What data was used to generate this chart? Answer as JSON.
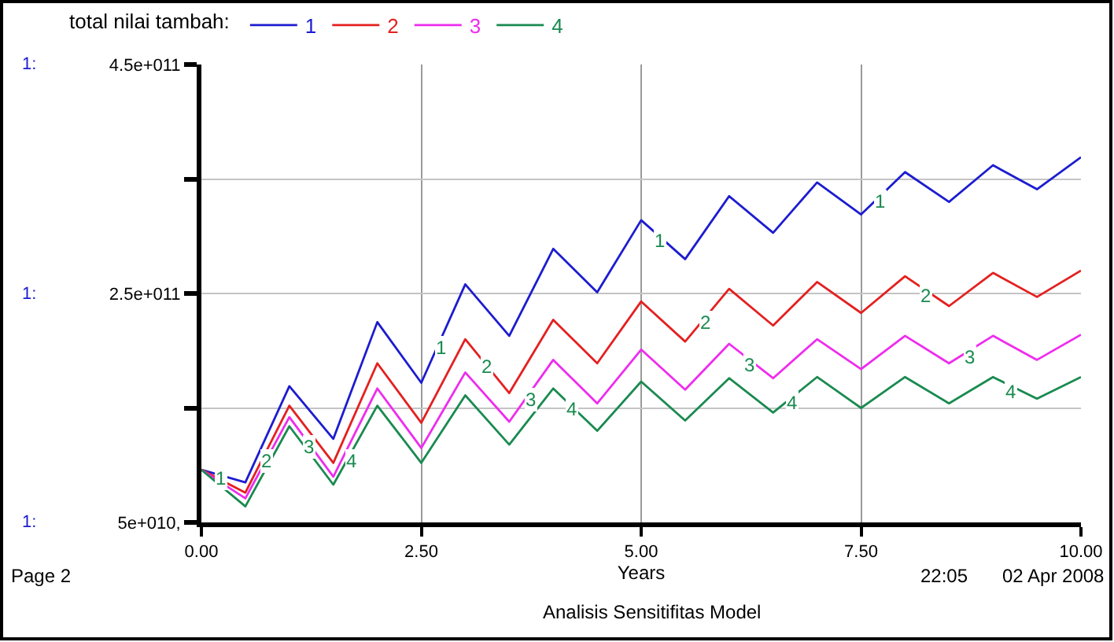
{
  "chart_data": {
    "type": "line",
    "legend_title": "total nilai tambah:",
    "xlabel": "Years",
    "x": [
      0,
      0.5,
      1,
      1.5,
      2,
      2.5,
      3,
      3.5,
      4,
      4.5,
      5,
      5.5,
      6,
      6.5,
      7,
      7.5,
      8,
      8.5,
      9,
      9.5,
      10
    ],
    "series": [
      {
        "name": "1",
        "color": "#1c1cd0",
        "values": [
          96000000000.0,
          85000000000.0,
          169000000000.0,
          123000000000.0,
          225000000000.0,
          172000000000.0,
          258000000000.0,
          213000000000.0,
          289000000000.0,
          251000000000.0,
          314000000000.0,
          280000000000.0,
          335000000000.0,
          303000000000.0,
          347000000000.0,
          319000000000.0,
          356000000000.0,
          330000000000.0,
          362000000000.0,
          341000000000.0,
          369000000000.0
        ]
      },
      {
        "name": "2",
        "color": "#e42020",
        "values": [
          96000000000.0,
          76000000000.0,
          152000000000.0,
          102000000000.0,
          189000000000.0,
          137000000000.0,
          210000000000.0,
          163000000000.0,
          227000000000.0,
          189000000000.0,
          243000000000.0,
          208000000000.0,
          254000000000.0,
          222000000000.0,
          260000000000.0,
          233000000000.0,
          265000000000.0,
          239000000000.0,
          268000000000.0,
          247000000000.0,
          270000000000.0
        ]
      },
      {
        "name": "3",
        "color": "#ee2cee",
        "values": [
          96000000000.0,
          71000000000.0,
          142000000000.0,
          90000000000.0,
          167000000000.0,
          115000000000.0,
          181000000000.0,
          138000000000.0,
          192000000000.0,
          154000000000.0,
          201000000000.0,
          166000000000.0,
          206000000000.0,
          176000000000.0,
          210000000000.0,
          184000000000.0,
          213000000000.0,
          189000000000.0,
          213000000000.0,
          192000000000.0,
          214000000000.0
        ]
      },
      {
        "name": "4",
        "color": "#1a8a50",
        "values": [
          96000000000.0,
          64000000000.0,
          134000000000.0,
          83000000000.0,
          152000000000.0,
          102000000000.0,
          161000000000.0,
          118000000000.0,
          167000000000.0,
          130000000000.0,
          173000000000.0,
          139000000000.0,
          176000000000.0,
          146000000000.0,
          177000000000.0,
          150000000000.0,
          177000000000.0,
          154000000000.0,
          177000000000.0,
          158000000000.0,
          177000000000.0
        ]
      }
    ],
    "xlim": [
      0,
      10
    ],
    "xticks": [
      {
        "value": 0,
        "label": "0.00"
      },
      {
        "value": 2.5,
        "label": "2.50"
      },
      {
        "value": 5,
        "label": "5.00"
      },
      {
        "value": 7.5,
        "label": "7.50"
      },
      {
        "value": 10,
        "label": "10.00"
      }
    ],
    "ylim": [
      50000000000.0,
      450000000000.0
    ],
    "yticks": [
      {
        "value": 50000000000.0,
        "label": "5e+010,"
      },
      {
        "value": 150000000000.0,
        "label": null
      },
      {
        "value": 250000000000.0,
        "label": "2.5e+011"
      },
      {
        "value": 350000000000.0,
        "label": null
      },
      {
        "value": 450000000000.0,
        "label": "4.5e+011"
      }
    ],
    "grid": true,
    "legend": "top left",
    "marker": "none",
    "line_style": "solid",
    "annotations": [
      {
        "text": "1",
        "x": 0.23,
        "y": 89000000000.0
      },
      {
        "text": "2",
        "x": 0.74,
        "y": 103000000000.0
      },
      {
        "text": "3",
        "x": 1.23,
        "y": 116000000000.0
      },
      {
        "text": "4",
        "x": 1.71,
        "y": 104000000000.0
      },
      {
        "text": "1",
        "x": 2.72,
        "y": 203000000000.0
      },
      {
        "text": "2",
        "x": 3.24,
        "y": 186000000000.0
      },
      {
        "text": "3",
        "x": 3.74,
        "y": 157000000000.0
      },
      {
        "text": "4",
        "x": 4.22,
        "y": 149000000000.0
      },
      {
        "text": "1",
        "x": 5.22,
        "y": 296000000000.0
      },
      {
        "text": "2",
        "x": 5.74,
        "y": 225000000000.0
      },
      {
        "text": "3",
        "x": 6.24,
        "y": 188000000000.0
      },
      {
        "text": "4",
        "x": 6.72,
        "y": 155000000000.0
      },
      {
        "text": "1",
        "x": 7.72,
        "y": 331000000000.0
      },
      {
        "text": "2",
        "x": 8.23,
        "y": 248000000000.0
      },
      {
        "text": "3",
        "x": 8.74,
        "y": 195000000000.0
      },
      {
        "text": "4",
        "x": 9.21,
        "y": 164000000000.0
      },
      "1:",
      "1:",
      "1:",
      "Page 2",
      "22:05",
      "02 Apr 2008",
      "Analisis Sensitifitas Model"
    ]
  }
}
